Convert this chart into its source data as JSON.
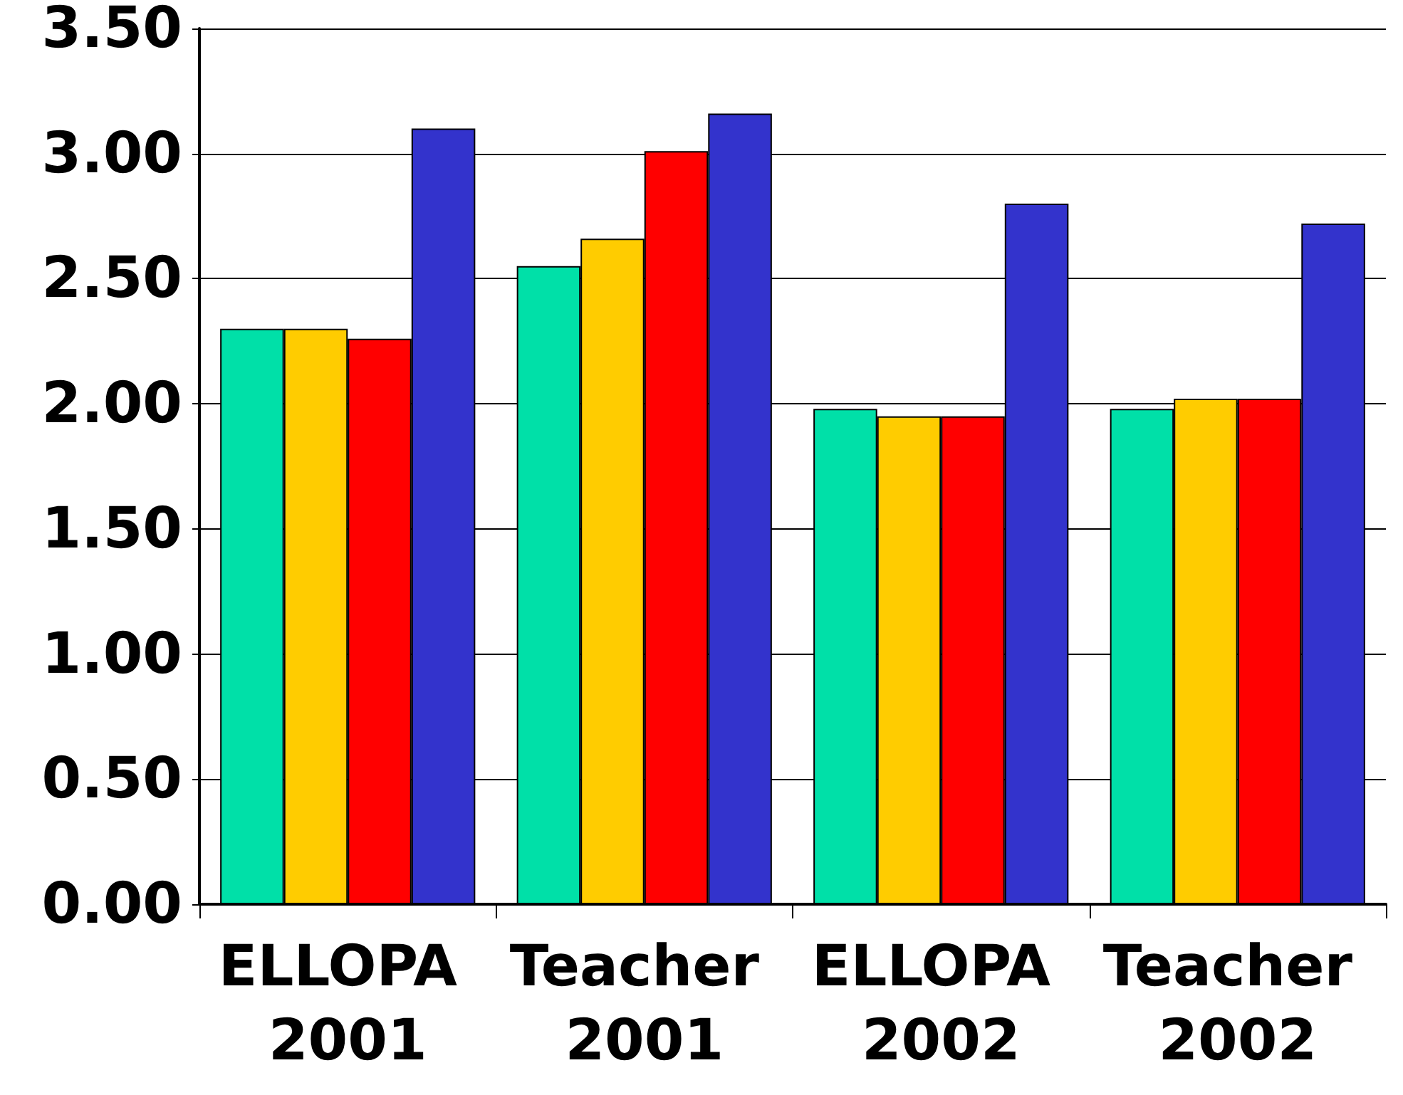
{
  "chart_data": {
    "type": "bar",
    "categories": [
      "ELLOPA 2001",
      "Teacher 2001",
      "ELLOPA 2002",
      "Teacher 2002"
    ],
    "series": [
      {
        "color": "#00e0a8",
        "values": [
          2.3,
          2.55,
          1.98,
          1.98
        ]
      },
      {
        "color": "#ffcc00",
        "values": [
          2.3,
          2.66,
          1.95,
          2.02
        ]
      },
      {
        "color": "#ff0000",
        "values": [
          2.26,
          3.01,
          1.95,
          2.02
        ]
      },
      {
        "color": "#3333cc",
        "values": [
          3.1,
          3.16,
          2.8,
          2.72
        ]
      }
    ],
    "ylim": [
      0,
      3.5
    ],
    "yticks": [
      {
        "value": 0,
        "label": "0.00"
      },
      {
        "value": 0.5,
        "label": "0.50"
      },
      {
        "value": 1,
        "label": "1.00"
      },
      {
        "value": 1.5,
        "label": "1.50"
      },
      {
        "value": 2,
        "label": "2.00"
      },
      {
        "value": 2.5,
        "label": "2.50"
      },
      {
        "value": 3,
        "label": "3.00"
      },
      {
        "value": 3.5,
        "label": "3.50"
      }
    ],
    "grid": "y"
  }
}
